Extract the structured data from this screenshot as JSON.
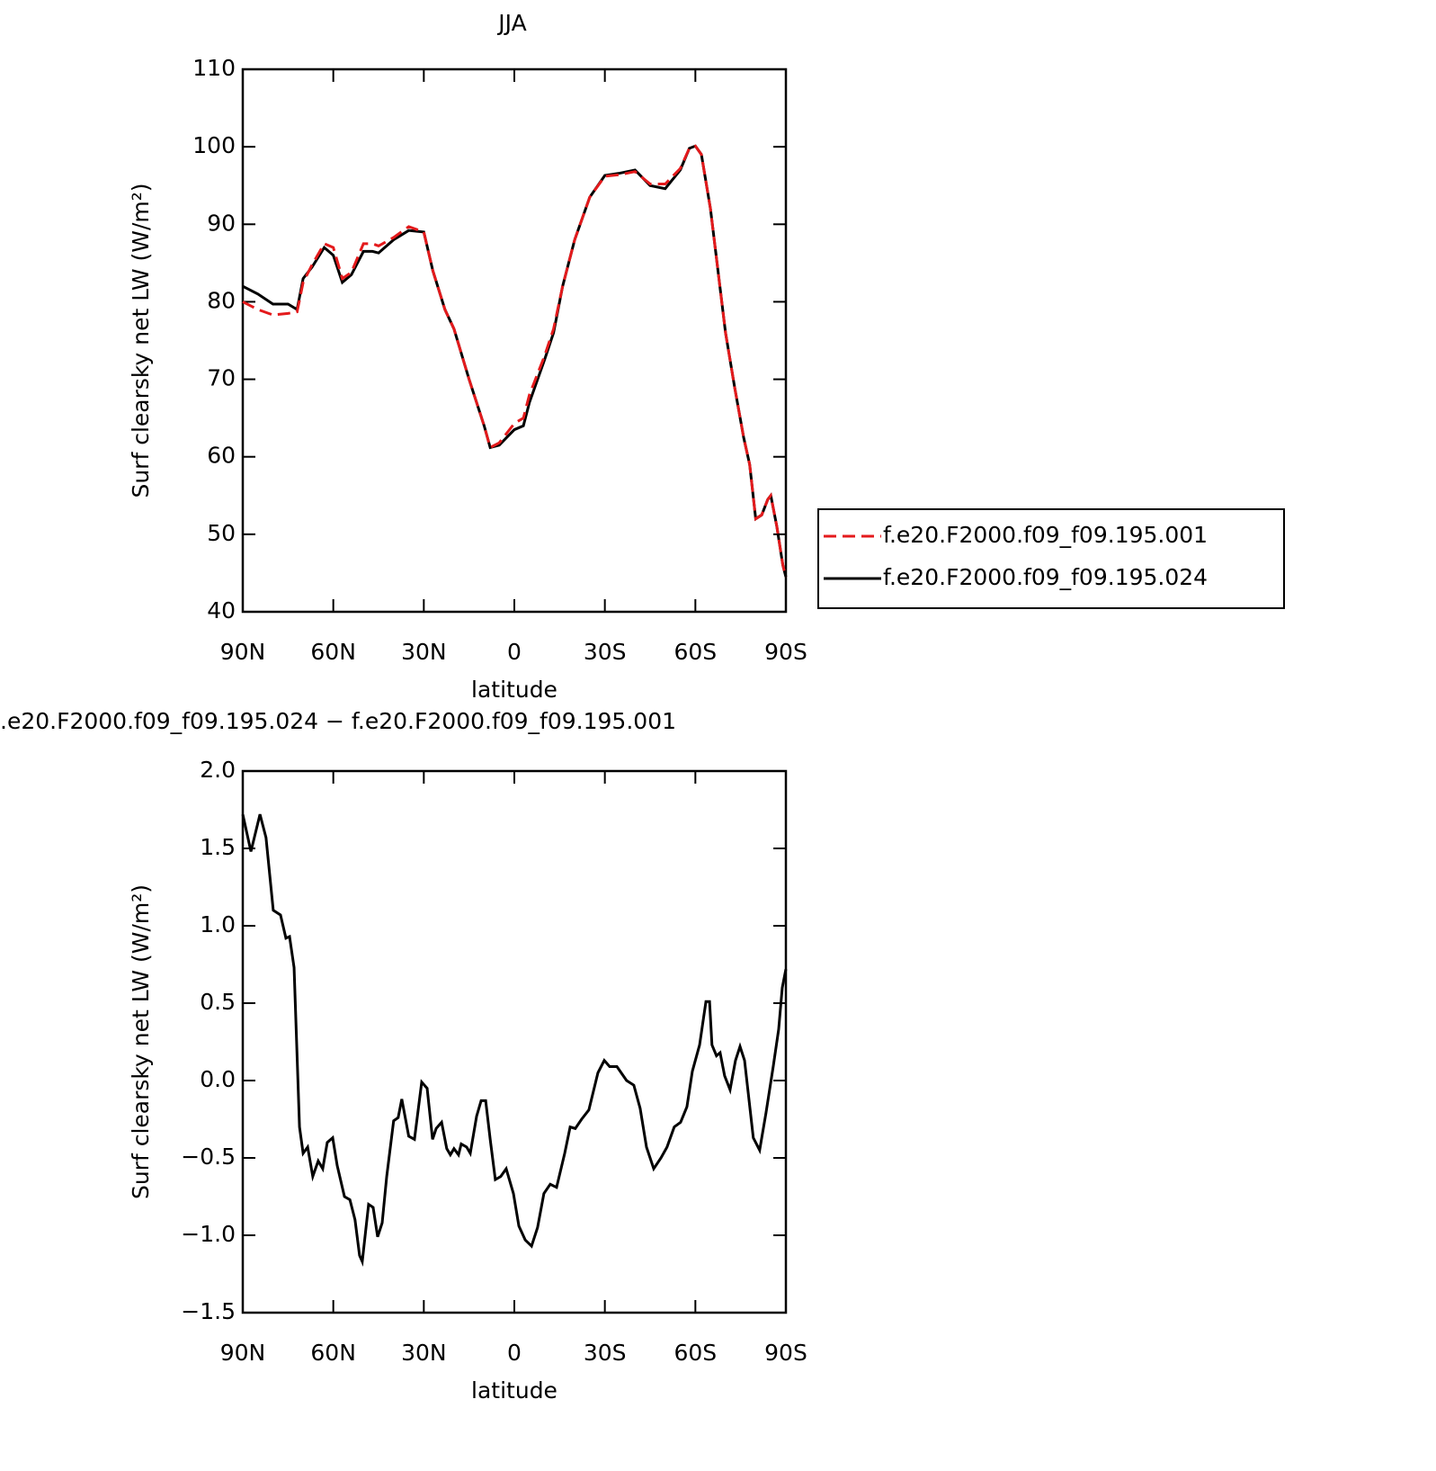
{
  "chart_data": [
    {
      "type": "line",
      "title": "JJA",
      "xlabel": "latitude",
      "ylabel": "Surf clearsky net LW (W/m²)",
      "x": [
        90,
        85,
        80,
        75,
        72,
        70,
        67,
        63,
        60,
        57,
        54,
        50,
        47,
        45,
        40,
        35,
        30,
        27,
        23,
        20,
        15,
        10,
        8,
        5,
        0,
        -3,
        -5,
        -10,
        -13,
        -16,
        -20,
        -25,
        -30,
        -35,
        -40,
        -45,
        -50,
        -55,
        -58,
        -60,
        -62,
        -65,
        -70,
        -73,
        -76,
        -78,
        -80,
        -82,
        -84,
        -85,
        -87,
        -89,
        -90
      ],
      "series": [
        {
          "name": "f.e20.F2000.f09_f09.195.001",
          "color": "#e41a1c",
          "linestyle": "dashed",
          "values": [
            80,
            79,
            78.3,
            78.5,
            78.7,
            82.5,
            84.8,
            87.5,
            87,
            83,
            83.8,
            87.5,
            87.5,
            87.2,
            88.3,
            89.7,
            89,
            84,
            79,
            76.5,
            70,
            64,
            61.2,
            61.8,
            64.3,
            65,
            68,
            73,
            76.5,
            82,
            88,
            93.5,
            96.2,
            96.4,
            96.8,
            95.2,
            95.2,
            97.2,
            99.8,
            100.1,
            99,
            92,
            76,
            69,
            62.5,
            59,
            52,
            52.5,
            54.5,
            55,
            51,
            46,
            44.5
          ]
        },
        {
          "name": "f.e20.F2000.f09_f09.195.024",
          "color": "#000000",
          "linestyle": "solid",
          "values": [
            82,
            81,
            79.7,
            79.7,
            79,
            83,
            84.5,
            87,
            86,
            82.5,
            83.5,
            86.5,
            86.5,
            86.3,
            88,
            89.2,
            89,
            84,
            79,
            76.5,
            70,
            64,
            61.2,
            61.5,
            63.5,
            64,
            67,
            72.5,
            76,
            82,
            88,
            93.5,
            96.3,
            96.6,
            97,
            95,
            94.6,
            97,
            99.8,
            100.1,
            99,
            92,
            76,
            69,
            62.5,
            59,
            52,
            52.5,
            54.5,
            55,
            51,
            46,
            44.5
          ]
        }
      ],
      "xlim": [
        90,
        -90
      ],
      "xticks": [
        {
          "value": 90,
          "label": "90N"
        },
        {
          "value": 60,
          "label": "60N"
        },
        {
          "value": 30,
          "label": "30N"
        },
        0,
        {
          "value": -30,
          "label": "30S"
        },
        {
          "value": -60,
          "label": "60S"
        },
        {
          "value": -90,
          "label": "90S"
        }
      ],
      "ylim": [
        40,
        110
      ],
      "yticks": [
        40,
        50,
        60,
        70,
        80,
        90,
        100,
        110
      ],
      "legend": "outside-right"
    },
    {
      "type": "line",
      "title": ".e20.F2000.f09_f09.195.024 − f.e20.F2000.f09_f09.195.001",
      "xlabel": "latitude",
      "ylabel": "Surf clearsky net LW (W/m²)",
      "x": [
        90,
        87.3,
        84.3,
        82.3,
        79.9,
        77.5,
        75.7,
        74.5,
        73,
        71.2,
        70,
        68.5,
        66.8,
        65,
        63.5,
        62,
        60.2,
        58.7,
        56.3,
        54.5,
        52.8,
        51.3,
        50.4,
        48.3,
        46.8,
        45.3,
        43.8,
        42.3,
        40,
        38.5,
        37.3,
        35,
        33.1,
        30.7,
        28.9,
        27.1,
        25.9,
        24.1,
        22.4,
        21.2,
        20,
        18.5,
        17.6,
        15.8,
        14.6,
        12.5,
        11,
        9.5,
        8,
        6.3,
        4.5,
        2.7,
        0.3,
        -1.5,
        -3.6,
        -5.7,
        -7.7,
        -9.8,
        -11.9,
        -14,
        -16.7,
        -18.5,
        -20.2,
        -22.3,
        -24.7,
        -27.7,
        -29.8,
        -31.6,
        -34,
        -37.2,
        -39.6,
        -41.7,
        -43.8,
        -46.2,
        -48.6,
        -50.6,
        -53,
        -55.1,
        -57.2,
        -59,
        -61.4,
        -63.5,
        -64.7,
        -65.5,
        -67,
        -68.2,
        -69.7,
        -71.5,
        -73.3,
        -74.8,
        -76.3,
        -79.2,
        -81.3,
        -83.4,
        -85.8,
        -87.6,
        -88.8,
        -90
      ],
      "series": [
        {
          "color": "#000000",
          "linestyle": "solid",
          "values": [
            1.72,
            1.48,
            1.72,
            1.57,
            1.1,
            1.07,
            0.92,
            0.93,
            0.73,
            -0.3,
            -0.47,
            -0.43,
            -0.62,
            -0.52,
            -0.57,
            -0.4,
            -0.37,
            -0.55,
            -0.75,
            -0.77,
            -0.9,
            -1.13,
            -1.17,
            -0.8,
            -0.82,
            -1.01,
            -0.92,
            -0.62,
            -0.26,
            -0.24,
            -0.12,
            -0.36,
            -0.38,
            -0.01,
            -0.05,
            -0.38,
            -0.31,
            -0.27,
            -0.44,
            -0.48,
            -0.44,
            -0.48,
            -0.41,
            -0.43,
            -0.47,
            -0.23,
            -0.13,
            -0.13,
            -0.38,
            -0.64,
            -0.62,
            -0.57,
            -0.73,
            -0.94,
            -1.03,
            -1.07,
            -0.95,
            -0.73,
            -0.67,
            -0.69,
            -0.47,
            -0.3,
            -0.31,
            -0.25,
            -0.19,
            0.05,
            0.13,
            0.09,
            0.09,
            0,
            -0.03,
            -0.18,
            -0.43,
            -0.57,
            -0.5,
            -0.43,
            -0.3,
            -0.27,
            -0.17,
            0.06,
            0.23,
            0.51,
            0.51,
            0.23,
            0.16,
            0.18,
            0.03,
            -0.06,
            0.13,
            0.22,
            0.13,
            -0.37,
            -0.45,
            -0.21,
            0.09,
            0.33,
            0.6,
            0.72
          ]
        }
      ],
      "xlim": [
        90,
        -90
      ],
      "xticks": [
        {
          "value": 90,
          "label": "90N"
        },
        {
          "value": 60,
          "label": "60N"
        },
        {
          "value": 30,
          "label": "30N"
        },
        0,
        {
          "value": -30,
          "label": "30S"
        },
        {
          "value": -60,
          "label": "60S"
        },
        {
          "value": -90,
          "label": "90S"
        }
      ],
      "ylim": [
        -1.5,
        2
      ],
      "yticks": [
        {
          "value": -1.5,
          "label": "−1.5"
        },
        {
          "value": -1,
          "label": "−1.0"
        },
        {
          "value": -0.5,
          "label": "−0.5"
        },
        {
          "value": 0,
          "label": "0.0"
        },
        {
          "value": 0.5,
          "label": "0.5"
        },
        {
          "value": 1,
          "label": "1.0"
        },
        {
          "value": 1.5,
          "label": "1.5"
        },
        {
          "value": 2,
          "label": "2.0"
        }
      ]
    }
  ]
}
